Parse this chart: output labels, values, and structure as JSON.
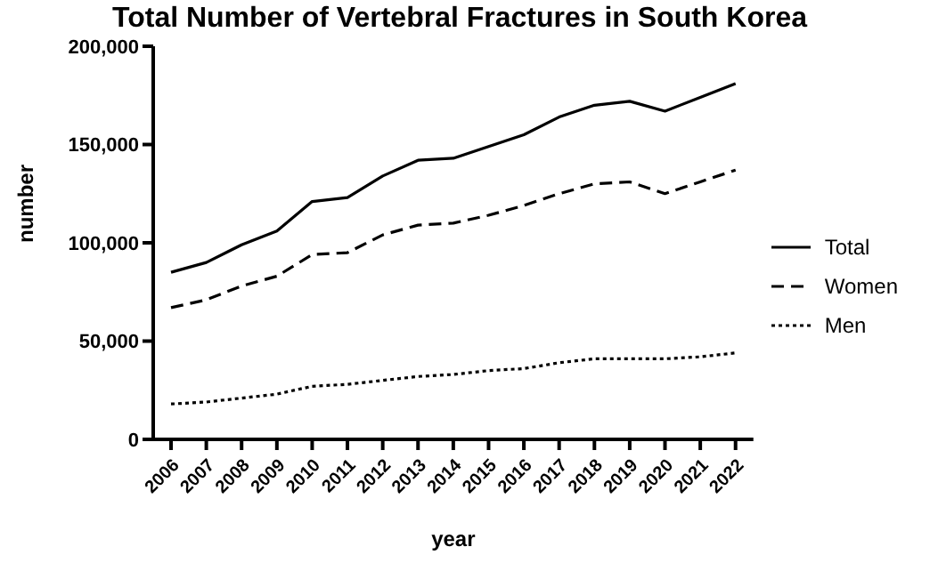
{
  "chart_data": {
    "type": "line",
    "title": "Total Number of Vertebral Fractures in South Korea",
    "xlabel": "year",
    "ylabel": "number",
    "categories": [
      "2006",
      "2007",
      "2008",
      "2009",
      "2010",
      "2011",
      "2012",
      "2013",
      "2014",
      "2015",
      "2016",
      "2017",
      "2018",
      "2019",
      "2020",
      "2021",
      "2022"
    ],
    "series": [
      {
        "name": "Total",
        "color": "#000000",
        "line_style": "solid",
        "values": [
          85000,
          90000,
          99000,
          106000,
          121000,
          123000,
          134000,
          142000,
          143000,
          149000,
          155000,
          164000,
          170000,
          172000,
          167000,
          174000,
          181000
        ]
      },
      {
        "name": "Women",
        "color": "#000000",
        "line_style": "dashed",
        "values": [
          67000,
          71000,
          78000,
          83000,
          94000,
          95000,
          104000,
          109000,
          110000,
          114000,
          119000,
          125000,
          130000,
          131000,
          125000,
          131000,
          137000
        ]
      },
      {
        "name": "Men",
        "color": "#000000",
        "line_style": "dotted",
        "values": [
          18000,
          19000,
          21000,
          23000,
          27000,
          28000,
          30000,
          32000,
          33000,
          35000,
          36000,
          39000,
          41000,
          41000,
          41000,
          42000,
          44000
        ]
      }
    ],
    "ylim": [
      0,
      200000
    ],
    "yticks": [
      0,
      {
        "value": 50000,
        "label": "50,000"
      },
      {
        "value": 100000,
        "label": "100,000"
      },
      {
        "value": 150000,
        "label": "150,000"
      },
      {
        "value": 200000,
        "label": "200,000"
      }
    ],
    "grid": false,
    "legend": "right",
    "marker": "none"
  }
}
